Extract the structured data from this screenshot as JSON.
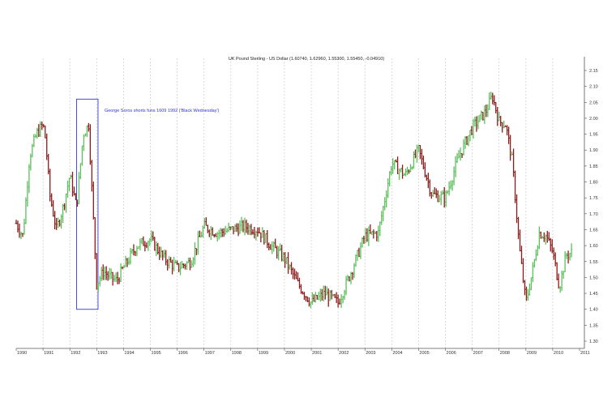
{
  "chart_data": {
    "type": "ohlc",
    "title": "UK Pound Sterling - US Dollar (1.60740, 1.62960, 1.55300, 1.55450, -0.04910)",
    "xlabel": "",
    "ylabel": "",
    "xlim": [
      1990.0,
      2011.0
    ],
    "ylim": [
      1.3,
      2.15
    ],
    "x_ticks": [
      "1990",
      "1991",
      "1992",
      "1993",
      "1994",
      "1995",
      "1996",
      "1997",
      "1998",
      "1999",
      "2000",
      "2001",
      "2002",
      "2003",
      "2004",
      "2005",
      "2006",
      "2007",
      "2008",
      "2009",
      "2010",
      "2011"
    ],
    "y_ticks": [
      "1.30",
      "1.35",
      "1.40",
      "1.45",
      "1.50",
      "1.55",
      "1.60",
      "1.65",
      "1.70",
      "1.75",
      "1.80",
      "1.85",
      "1.90",
      "1.95",
      "2.00",
      "2.05",
      "2.10",
      "2.15"
    ],
    "grid": {
      "vertical": true,
      "horizontal": false
    },
    "y_axis_side": "right",
    "colors": {
      "up": "#5cbf5c",
      "down": "#8b1a1a",
      "grid": "#cccccc",
      "annotation": "#4a4ad8",
      "axis": "#555555"
    },
    "annotation": {
      "text": "George Soros shorts funs 1609 1992  ('Black Wednesday')",
      "x_range": [
        1992.25,
        1993.05
      ],
      "y_range": [
        1.4,
        2.06
      ]
    },
    "series": [
      {
        "x": [
          1990.0,
          1990.25,
          1990.5,
          1990.75,
          1991.0,
          1991.1,
          1991.25,
          1991.5,
          1991.75,
          1992.0,
          1992.25,
          1992.5,
          1992.7,
          1993.0,
          1993.25,
          1993.5,
          1993.75,
          1994.0,
          1994.5,
          1995.0,
          1995.5,
          1996.0,
          1996.5,
          1997.0,
          1997.5,
          1998.0,
          1998.5,
          1999.0,
          1999.5,
          2000.0,
          2000.5,
          2001.0,
          2001.5,
          2002.0,
          2002.5,
          2003.0,
          2003.5,
          2004.0,
          2004.5,
          2005.0,
          2005.5,
          2006.0,
          2006.5,
          2007.0,
          2007.5,
          2007.75,
          2008.0,
          2008.25,
          2008.5,
          2008.75,
          2009.0,
          2009.25,
          2009.5,
          2009.75,
          2010.0,
          2010.25,
          2010.5,
          2010.75
        ],
        "y": [
          1.67,
          1.63,
          1.88,
          1.95,
          1.98,
          1.93,
          1.76,
          1.65,
          1.72,
          1.82,
          1.72,
          1.95,
          1.98,
          1.48,
          1.52,
          1.5,
          1.49,
          1.53,
          1.6,
          1.62,
          1.56,
          1.53,
          1.55,
          1.66,
          1.64,
          1.65,
          1.66,
          1.65,
          1.6,
          1.56,
          1.48,
          1.42,
          1.45,
          1.42,
          1.52,
          1.63,
          1.64,
          1.86,
          1.82,
          1.9,
          1.76,
          1.75,
          1.88,
          1.97,
          2.02,
          2.07,
          1.99,
          1.98,
          1.86,
          1.6,
          1.42,
          1.52,
          1.64,
          1.63,
          1.58,
          1.47,
          1.57,
          1.58
        ]
      }
    ]
  }
}
